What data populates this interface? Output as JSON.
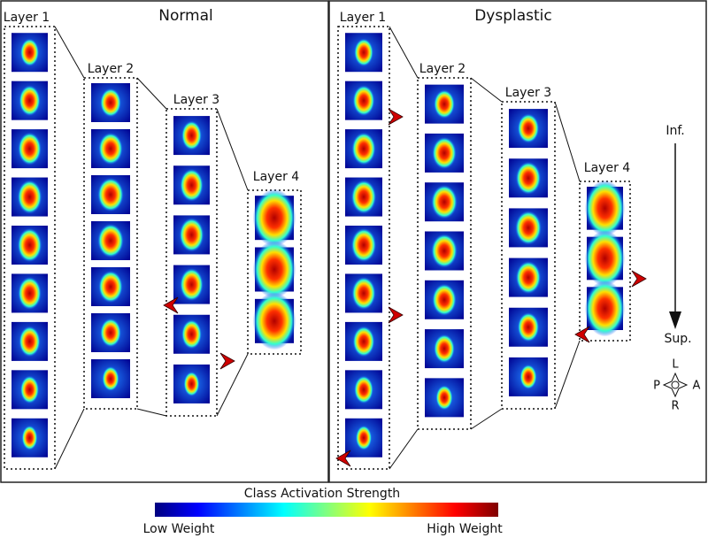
{
  "panels": [
    {
      "title": "Normal",
      "layers": [
        {
          "label": "Layer 1"
        },
        {
          "label": "Layer 2"
        },
        {
          "label": "Layer 3"
        },
        {
          "label": "Layer 4"
        }
      ]
    },
    {
      "title": "Dysplastic",
      "layers": [
        {
          "label": "Layer 1"
        },
        {
          "label": "Layer 2"
        },
        {
          "label": "Layer 3"
        },
        {
          "label": "Layer 4"
        }
      ]
    }
  ],
  "orientation": {
    "inferior": "Inf.",
    "superior": "Sup.",
    "left": "L",
    "right": "R",
    "posterior": "P",
    "anterior": "A"
  },
  "colorbar": {
    "title": "Class Activation Strength",
    "low_label": "Low Weight",
    "high_label": "High Weight"
  }
}
